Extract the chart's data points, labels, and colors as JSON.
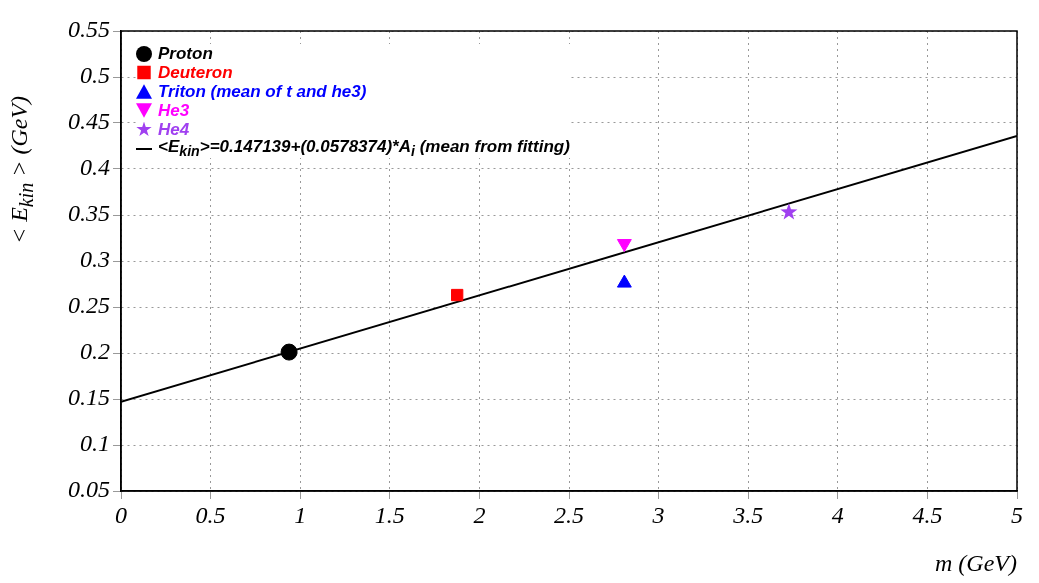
{
  "chart_data": {
    "type": "scatter",
    "xlabel": "m (GeV)",
    "ylabel": "< E$_{kin}$ > (GeV)",
    "xlim": [
      0,
      5
    ],
    "xticks": [
      0,
      0.5,
      1,
      1.5,
      2,
      2.5,
      3,
      3.5,
      4,
      4.5,
      5
    ],
    "ylim": [
      0.05,
      0.55
    ],
    "yticks": [
      0.05,
      0.1,
      0.15,
      0.2,
      0.25,
      0.3,
      0.35,
      0.4,
      0.45,
      0.5,
      0.55
    ],
    "grid": true,
    "legend": "top left",
    "series": [
      {
        "name": "Proton",
        "color": "#000000",
        "marker": "circle",
        "x": [
          0.938
        ],
        "values": [
          0.201
        ]
      },
      {
        "name": "Deuteron",
        "color": "#ff0000",
        "marker": "square",
        "x": [
          1.876
        ],
        "values": [
          0.263
        ]
      },
      {
        "name": "Triton (mean of t and he3)",
        "color": "#0000ff",
        "marker": "triangle",
        "x": [
          2.809
        ],
        "values": [
          0.276
        ]
      },
      {
        "name": "He3",
        "color": "#ff00ff",
        "marker": "triangle-down",
        "x": [
          2.809
        ],
        "values": [
          0.319
        ]
      },
      {
        "name": "He4",
        "color": "#a040f0",
        "marker": "star",
        "x": [
          3.727
        ],
        "values": [
          0.353
        ]
      },
      {
        "name": "<E$_{kin}$>=0.147139+(0.0578374)*A$_{i}$ (mean from fitting)",
        "type": "line",
        "color": "#000000",
        "marker": "none",
        "x": [
          0,
          5
        ],
        "values": [
          0.147,
          0.436
        ]
      }
    ]
  }
}
